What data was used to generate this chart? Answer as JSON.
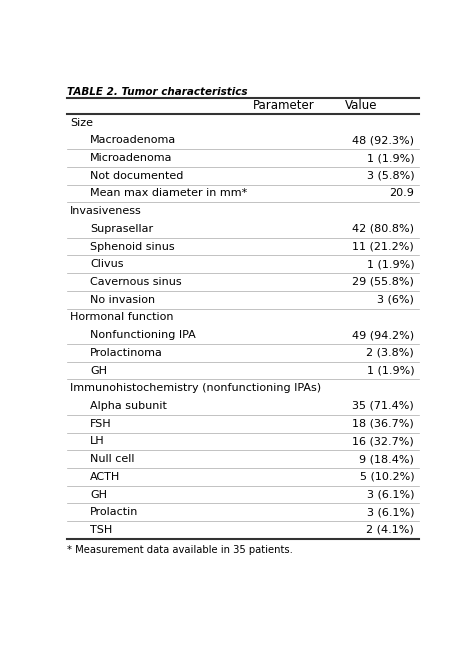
{
  "title": "TABLE 2. Tumor characteristics",
  "headers": [
    "Parameter",
    "Value"
  ],
  "rows": [
    {
      "type": "section",
      "label": "Size",
      "value": ""
    },
    {
      "type": "item",
      "label": "Macroadenoma",
      "value": "48 (92.3%)"
    },
    {
      "type": "item",
      "label": "Microadenoma",
      "value": "1 (1.9%)"
    },
    {
      "type": "item",
      "label": "Not documented",
      "value": "3 (5.8%)"
    },
    {
      "type": "item",
      "label": "Mean max diameter in mm*",
      "value": "20.9"
    },
    {
      "type": "section",
      "label": "Invasiveness",
      "value": ""
    },
    {
      "type": "item",
      "label": "Suprasellar",
      "value": "42 (80.8%)"
    },
    {
      "type": "item",
      "label": "Sphenoid sinus",
      "value": "11 (21.2%)"
    },
    {
      "type": "item",
      "label": "Clivus",
      "value": "1 (1.9%)"
    },
    {
      "type": "item",
      "label": "Cavernous sinus",
      "value": "29 (55.8%)"
    },
    {
      "type": "item",
      "label": "No invasion",
      "value": "3 (6%)"
    },
    {
      "type": "section",
      "label": "Hormonal function",
      "value": ""
    },
    {
      "type": "item",
      "label": "Nonfunctioning IPA",
      "value": "49 (94.2%)"
    },
    {
      "type": "item",
      "label": "Prolactinoma",
      "value": "2 (3.8%)"
    },
    {
      "type": "item",
      "label": "GH",
      "value": "1 (1.9%)"
    },
    {
      "type": "section",
      "label": "Immunohistochemistry (nonfunctioning IPAs)",
      "value": ""
    },
    {
      "type": "item",
      "label": "Alpha subunit",
      "value": "35 (71.4%)"
    },
    {
      "type": "item",
      "label": "FSH",
      "value": "18 (36.7%)"
    },
    {
      "type": "item",
      "label": "LH",
      "value": "16 (32.7%)"
    },
    {
      "type": "item",
      "label": "Null cell",
      "value": "9 (18.4%)"
    },
    {
      "type": "item",
      "label": "ACTH",
      "value": "5 (10.2%)"
    },
    {
      "type": "item",
      "label": "GH",
      "value": "3 (6.1%)"
    },
    {
      "type": "item",
      "label": "Prolactin",
      "value": "3 (6.1%)"
    },
    {
      "type": "item",
      "label": "TSH",
      "value": "2 (4.1%)"
    }
  ],
  "footnote": "* Measurement data available in 35 patients.",
  "bg_color": "#ffffff",
  "text_color": "#000000",
  "line_color": "#333333",
  "title_fontsize": 7.5,
  "header_fontsize": 8.5,
  "section_fontsize": 8.0,
  "item_fontsize": 8.0,
  "footnote_fontsize": 7.2,
  "fig_width": 4.74,
  "fig_height": 6.72,
  "dpi": 100
}
